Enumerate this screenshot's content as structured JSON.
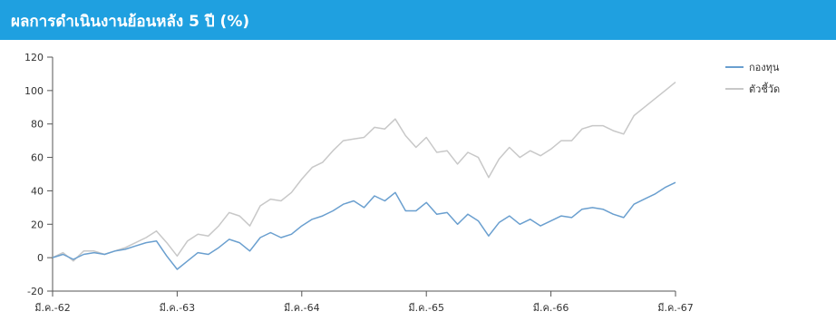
{
  "header": {
    "title": "ผลการดำเนินงานย้อนหลัง 5 ปี (%)"
  },
  "colors": {
    "header_bg": "#1fa0e0",
    "fund": "#6a9fcf",
    "benchmark": "#c8c8c8",
    "axis": "#555555"
  },
  "chart_data": {
    "type": "line",
    "title": "ผลการดำเนินงานย้อนหลัง 5 ปี (%)",
    "xlabel": "",
    "ylabel": "",
    "ylim": [
      -20,
      120
    ],
    "yticks": [
      -20,
      0,
      20,
      40,
      60,
      80,
      100,
      120
    ],
    "x_tick_labels": [
      "มี.ค.-62",
      "มี.ค.-63",
      "มี.ค.-64",
      "มี.ค.-65",
      "มี.ค.-66",
      "มี.ค.-67"
    ],
    "x_month_range": [
      0,
      60
    ],
    "legend_position": "top-right",
    "grid": false,
    "series": [
      {
        "name": "กองทุน",
        "color": "#6a9fcf",
        "points": [
          [
            0,
            0
          ],
          [
            1,
            2
          ],
          [
            2,
            -1
          ],
          [
            3,
            2
          ],
          [
            4,
            3
          ],
          [
            5,
            2
          ],
          [
            6,
            4
          ],
          [
            7,
            5
          ],
          [
            8,
            7
          ],
          [
            9,
            9
          ],
          [
            10,
            10
          ],
          [
            11,
            1
          ],
          [
            12,
            -7
          ],
          [
            13,
            -2
          ],
          [
            14,
            3
          ],
          [
            15,
            2
          ],
          [
            16,
            6
          ],
          [
            17,
            11
          ],
          [
            18,
            9
          ],
          [
            19,
            4
          ],
          [
            20,
            12
          ],
          [
            21,
            15
          ],
          [
            22,
            12
          ],
          [
            23,
            14
          ],
          [
            24,
            19
          ],
          [
            25,
            23
          ],
          [
            26,
            25
          ],
          [
            27,
            28
          ],
          [
            28,
            32
          ],
          [
            29,
            34
          ],
          [
            30,
            30
          ],
          [
            31,
            37
          ],
          [
            32,
            34
          ],
          [
            33,
            39
          ],
          [
            34,
            28
          ],
          [
            35,
            28
          ],
          [
            36,
            33
          ],
          [
            37,
            26
          ],
          [
            38,
            27
          ],
          [
            39,
            20
          ],
          [
            40,
            26
          ],
          [
            41,
            22
          ],
          [
            42,
            13
          ],
          [
            43,
            21
          ],
          [
            44,
            25
          ],
          [
            45,
            20
          ],
          [
            46,
            23
          ],
          [
            47,
            19
          ],
          [
            48,
            22
          ],
          [
            49,
            25
          ],
          [
            50,
            24
          ],
          [
            51,
            29
          ],
          [
            52,
            30
          ],
          [
            53,
            29
          ],
          [
            54,
            26
          ],
          [
            55,
            24
          ],
          [
            56,
            32
          ],
          [
            57,
            35
          ],
          [
            58,
            38
          ],
          [
            59,
            42
          ],
          [
            60,
            45
          ]
        ]
      },
      {
        "name": "ตัวชี้วัด",
        "color": "#c8c8c8",
        "points": [
          [
            0,
            0
          ],
          [
            1,
            3
          ],
          [
            2,
            -2
          ],
          [
            3,
            4
          ],
          [
            4,
            4
          ],
          [
            5,
            2
          ],
          [
            6,
            4
          ],
          [
            7,
            6
          ],
          [
            8,
            9
          ],
          [
            9,
            12
          ],
          [
            10,
            16
          ],
          [
            11,
            9
          ],
          [
            12,
            1
          ],
          [
            13,
            10
          ],
          [
            14,
            14
          ],
          [
            15,
            13
          ],
          [
            16,
            19
          ],
          [
            17,
            27
          ],
          [
            18,
            25
          ],
          [
            19,
            19
          ],
          [
            20,
            31
          ],
          [
            21,
            35
          ],
          [
            22,
            34
          ],
          [
            23,
            39
          ],
          [
            24,
            47
          ],
          [
            25,
            54
          ],
          [
            26,
            57
          ],
          [
            27,
            64
          ],
          [
            28,
            70
          ],
          [
            29,
            71
          ],
          [
            30,
            72
          ],
          [
            31,
            78
          ],
          [
            32,
            77
          ],
          [
            33,
            83
          ],
          [
            34,
            73
          ],
          [
            35,
            66
          ],
          [
            36,
            72
          ],
          [
            37,
            63
          ],
          [
            38,
            64
          ],
          [
            39,
            56
          ],
          [
            40,
            63
          ],
          [
            41,
            60
          ],
          [
            42,
            48
          ],
          [
            43,
            59
          ],
          [
            44,
            66
          ],
          [
            45,
            60
          ],
          [
            46,
            64
          ],
          [
            47,
            61
          ],
          [
            48,
            65
          ],
          [
            49,
            70
          ],
          [
            50,
            70
          ],
          [
            51,
            77
          ],
          [
            52,
            79
          ],
          [
            53,
            79
          ],
          [
            54,
            76
          ],
          [
            55,
            74
          ],
          [
            56,
            85
          ],
          [
            57,
            90
          ],
          [
            58,
            95
          ],
          [
            59,
            100
          ],
          [
            60,
            105
          ]
        ]
      }
    ]
  }
}
